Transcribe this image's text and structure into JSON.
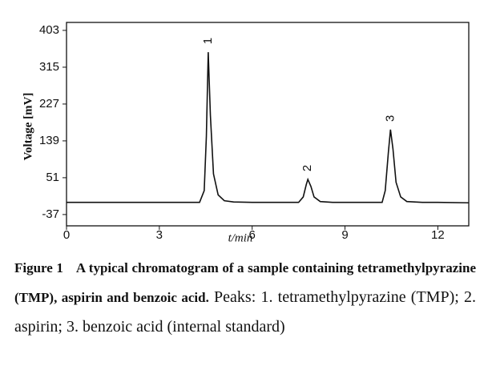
{
  "chart_data": {
    "type": "line",
    "ylabel": "Voltage [mV]",
    "xlabel": "t/min",
    "x": [
      0,
      1,
      2,
      3,
      4,
      4.3,
      4.45,
      4.52,
      4.58,
      4.65,
      4.75,
      4.9,
      5.1,
      5.4,
      6,
      7,
      7.5,
      7.65,
      7.75,
      7.8,
      7.9,
      8.0,
      8.2,
      8.6,
      9,
      10,
      10.2,
      10.3,
      10.4,
      10.47,
      10.55,
      10.65,
      10.8,
      11.0,
      11.5,
      12,
      13
    ],
    "values": [
      -8,
      -8,
      -8,
      -8,
      -8,
      -8,
      20,
      150,
      351,
      200,
      60,
      10,
      -4,
      -7,
      -8,
      -8,
      -8,
      5,
      35,
      47,
      30,
      5,
      -6,
      -8,
      -8,
      -8,
      -8,
      20,
      110,
      166,
      120,
      40,
      5,
      -6,
      -8,
      -8,
      -9
    ],
    "color": "#111111",
    "peaks": [
      {
        "label": "1",
        "x": 4.58,
        "value": 351
      },
      {
        "label": "2",
        "x": 7.8,
        "value": 47
      },
      {
        "label": "3",
        "x": 10.47,
        "value": 166
      }
    ],
    "xlim": [
      0,
      13
    ],
    "xticks": [
      0,
      3,
      6,
      9,
      12
    ],
    "ylim": [
      -64,
      422
    ],
    "yticks": [
      -37,
      51,
      139,
      227,
      315,
      403
    ]
  },
  "caption": {
    "label": "Figure 1",
    "title": "A typical chromatogram of a sample containing tetramethylpyrazine (TMP), aspirin and benzoic acid.",
    "text": "Peaks: 1. tetramethylpyrazine (TMP); 2. aspirin; 3. benzoic acid (internal standard)"
  }
}
